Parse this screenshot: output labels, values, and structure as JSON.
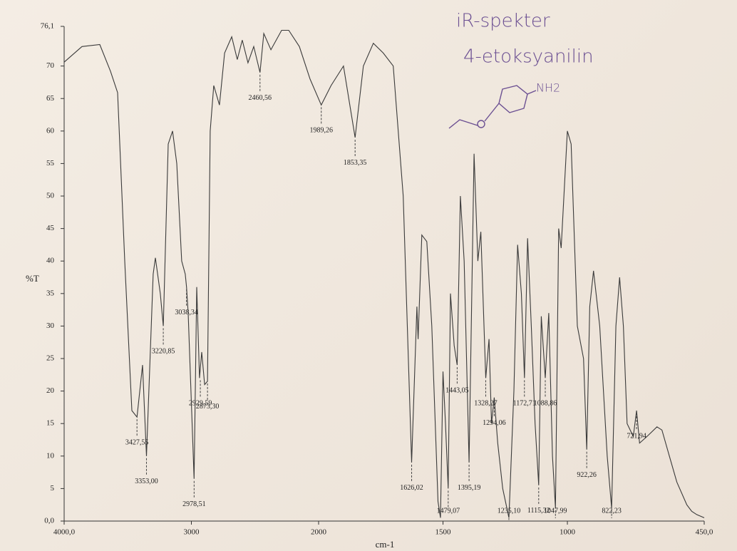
{
  "chart_data": {
    "type": "line",
    "title": "iR-spekter",
    "subtitle": "4-etoksyanilin",
    "structure_label": "NH2",
    "y_label": "%T",
    "x_label": "cm-1",
    "color": "#3a3a3a",
    "x_break": 2000,
    "xlim": [
      4000,
      450
    ],
    "ylim": [
      0,
      76.1
    ],
    "xticks": [
      {
        "value": 4000,
        "label": "4000,0"
      },
      3000,
      2000,
      1500,
      1000,
      {
        "value": 450,
        "label": "450,0"
      }
    ],
    "yticks": [
      {
        "value": 0,
        "label": "0,0"
      },
      5,
      10,
      15,
      20,
      25,
      30,
      35,
      40,
      45,
      50,
      55,
      60,
      65,
      70,
      {
        "value": 76.1,
        "label": "76,1"
      }
    ],
    "x": [
      4000,
      3860,
      3720,
      3636,
      3580,
      3524,
      3468,
      3427.55,
      3384,
      3353,
      3300,
      3283,
      3244,
      3220.85,
      3182,
      3148,
      3115,
      3076,
      3048,
      3038.34,
      3025,
      2978.51,
      2958,
      2936,
      2919,
      2896,
      2873.3,
      2852,
      2824,
      2779,
      2739,
      2683,
      2639,
      2600,
      2555,
      2510,
      2460.56,
      2431,
      2375,
      2291,
      2235,
      2151,
      2067,
      1989.26,
      1950,
      1900,
      1853.35,
      1820,
      1780,
      1740,
      1700,
      1660,
      1626.02,
      1605,
      1600,
      1585,
      1565,
      1545,
      1520,
      1510,
      1500,
      1490,
      1479.07,
      1470,
      1455,
      1443.05,
      1430,
      1415,
      1395.19,
      1375,
      1360,
      1348,
      1328.27,
      1315,
      1305,
      1294.06,
      1280,
      1260,
      1235.1,
      1215,
      1200,
      1185,
      1172.71,
      1160,
      1145,
      1130,
      1115.32,
      1105,
      1088.86,
      1075,
      1060,
      1047.99,
      1035,
      1025,
      1000,
      985,
      960,
      935,
      922.26,
      910,
      895,
      870,
      840,
      822.23,
      805,
      790,
      775,
      760,
      735,
      721.94,
      710,
      680,
      640,
      620,
      590,
      560,
      520,
      500,
      480,
      450
    ],
    "values": [
      70.6,
      73.0,
      73.3,
      69.2,
      65.9,
      40,
      17,
      16,
      24,
      10,
      38,
      40.5,
      35,
      30,
      58,
      60,
      55,
      40,
      38,
      36,
      32,
      6.5,
      36,
      22,
      26,
      21,
      21.5,
      60,
      67,
      64,
      72,
      74.5,
      71,
      74,
      70.5,
      73,
      69,
      75,
      72.5,
      75.5,
      75.5,
      73,
      68,
      64,
      67,
      70,
      59,
      70,
      73.5,
      72,
      70,
      50,
      9,
      33,
      28,
      44,
      43,
      30,
      3,
      0.5,
      23,
      15,
      5,
      35,
      27,
      24,
      50,
      40,
      9,
      56.5,
      40,
      44.5,
      22,
      28,
      15,
      19,
      12,
      5,
      0.5,
      20,
      42.5,
      35,
      22,
      43.5,
      30,
      15,
      5.5,
      31.5,
      22,
      32,
      10,
      2,
      45,
      42,
      60,
      58,
      30,
      25,
      11,
      33,
      38.5,
      30,
      10,
      2,
      30,
      37.5,
      30,
      15,
      13,
      17,
      12,
      13,
      14.5,
      14,
      10,
      6,
      2.5,
      1.5,
      1,
      0.5
    ],
    "peaks": [
      {
        "x": 3427.55,
        "y": 16,
        "label": "3427,55"
      },
      {
        "x": 3353.0,
        "y": 10,
        "label": "3353,00"
      },
      {
        "x": 3220.85,
        "y": 30,
        "label": "3220,85"
      },
      {
        "x": 3038.34,
        "y": 36,
        "label": "3038,34"
      },
      {
        "x": 2978.51,
        "y": 6.5,
        "label": "2978,51"
      },
      {
        "x": 2929.59,
        "y": 22,
        "label": "2929,59"
      },
      {
        "x": 2873.3,
        "y": 21.5,
        "label": "2873,30"
      },
      {
        "x": 2460.56,
        "y": 69,
        "label": "2460,56"
      },
      {
        "x": 1989.26,
        "y": 64,
        "label": "1989,26"
      },
      {
        "x": 1853.35,
        "y": 59,
        "label": "1853,35"
      },
      {
        "x": 1626.02,
        "y": 9,
        "label": "1626,02"
      },
      {
        "x": 1479.07,
        "y": 5,
        "label": "1479,07"
      },
      {
        "x": 1443.05,
        "y": 24,
        "label": "1443,05"
      },
      {
        "x": 1395.19,
        "y": 9,
        "label": "1395,19"
      },
      {
        "x": 1328.27,
        "y": 22,
        "label": "1328,27"
      },
      {
        "x": 1294.06,
        "y": 19,
        "label": "1294,06"
      },
      {
        "x": 1235.1,
        "y": 0.5,
        "label": "1235,10"
      },
      {
        "x": 1172.71,
        "y": 22,
        "label": "1172,71"
      },
      {
        "x": 1115.32,
        "y": 5.5,
        "label": "1115,32"
      },
      {
        "x": 1088.86,
        "y": 22,
        "label": "1088,86"
      },
      {
        "x": 1047.99,
        "y": 2,
        "label": "1047,99"
      },
      {
        "x": 922.26,
        "y": 11,
        "label": "922,26"
      },
      {
        "x": 822.23,
        "y": 2,
        "label": "822,23"
      },
      {
        "x": 721.94,
        "y": 17,
        "label": "721,94"
      }
    ]
  }
}
